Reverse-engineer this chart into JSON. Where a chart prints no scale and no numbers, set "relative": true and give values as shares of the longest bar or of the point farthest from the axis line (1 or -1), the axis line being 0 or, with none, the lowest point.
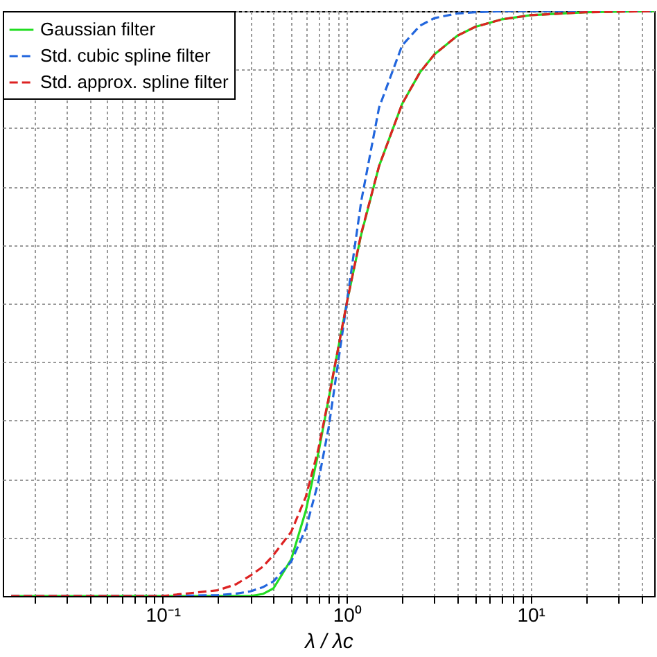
{
  "chart_data": {
    "type": "line",
    "xlabel": "λ / λc",
    "relative": true,
    "log": "x",
    "grid": true,
    "legend": "top left",
    "x": [
      0.015,
      0.1,
      0.2,
      0.25,
      0.3,
      0.35,
      0.4,
      0.5,
      0.6,
      0.7,
      0.8,
      1,
      1.2,
      1.5,
      2,
      2.5,
      3,
      4,
      5,
      7,
      10,
      20,
      47
    ],
    "xlim": [
      0.0135,
      47
    ],
    "xticks": [
      {
        "value": 0.02,
        "label": null
      },
      {
        "value": 0.03,
        "label": null
      },
      {
        "value": 0.04,
        "label": null
      },
      {
        "value": 0.05,
        "label": null
      },
      {
        "value": 0.06,
        "label": null
      },
      {
        "value": 0.07,
        "label": null
      },
      {
        "value": 0.08,
        "label": null
      },
      {
        "value": 0.09,
        "label": null
      },
      {
        "value": 0.1,
        "label": "10⁻¹"
      },
      {
        "value": 0.2,
        "label": null
      },
      {
        "value": 0.3,
        "label": null
      },
      {
        "value": 0.4,
        "label": null
      },
      {
        "value": 0.5,
        "label": null
      },
      {
        "value": 0.6,
        "label": null
      },
      {
        "value": 0.7,
        "label": null
      },
      {
        "value": 0.8,
        "label": null
      },
      {
        "value": 0.9,
        "label": null
      },
      {
        "value": 1,
        "label": "10⁰"
      },
      {
        "value": 2,
        "label": null
      },
      {
        "value": 3,
        "label": null
      },
      {
        "value": 4,
        "label": null
      },
      {
        "value": 5,
        "label": null
      },
      {
        "value": 6,
        "label": null
      },
      {
        "value": 7,
        "label": null
      },
      {
        "value": 8,
        "label": null
      },
      {
        "value": 9,
        "label": null
      },
      {
        "value": 10,
        "label": "10¹"
      },
      {
        "value": 20,
        "label": null
      },
      {
        "value": 30,
        "label": null
      },
      {
        "value": 40,
        "label": null
      }
    ],
    "series": [
      {
        "name": "Gaussian filter",
        "color": "#22dd22",
        "line_style": "solid",
        "values": [
          0,
          0,
          0,
          0,
          0,
          0.0035,
          0.013,
          0.063,
          0.146,
          0.243,
          0.339,
          0.5,
          0.618,
          0.735,
          0.841,
          0.895,
          0.926,
          0.958,
          0.973,
          0.986,
          0.993,
          0.998,
          1
        ]
      },
      {
        "name": "Std. cubic spline filter",
        "color": "#2266dd",
        "line_style": "dashed",
        "values": [
          0,
          0,
          0.0016,
          0.004,
          0.008,
          0.015,
          0.025,
          0.059,
          0.115,
          0.194,
          0.29,
          0.5,
          0.675,
          0.835,
          0.941,
          0.975,
          0.988,
          0.996,
          0.998,
          1,
          1,
          1,
          1
        ]
      },
      {
        "name": "Std. approx. spline filter",
        "color": "#dd2222",
        "line_style": "dashed",
        "values": [
          0,
          0,
          0.01,
          0.02,
          0.035,
          0.05,
          0.07,
          0.11,
          0.17,
          0.25,
          0.34,
          0.5,
          0.62,
          0.735,
          0.841,
          0.895,
          0.926,
          0.958,
          0.973,
          0.986,
          0.993,
          0.998,
          1
        ]
      }
    ]
  }
}
